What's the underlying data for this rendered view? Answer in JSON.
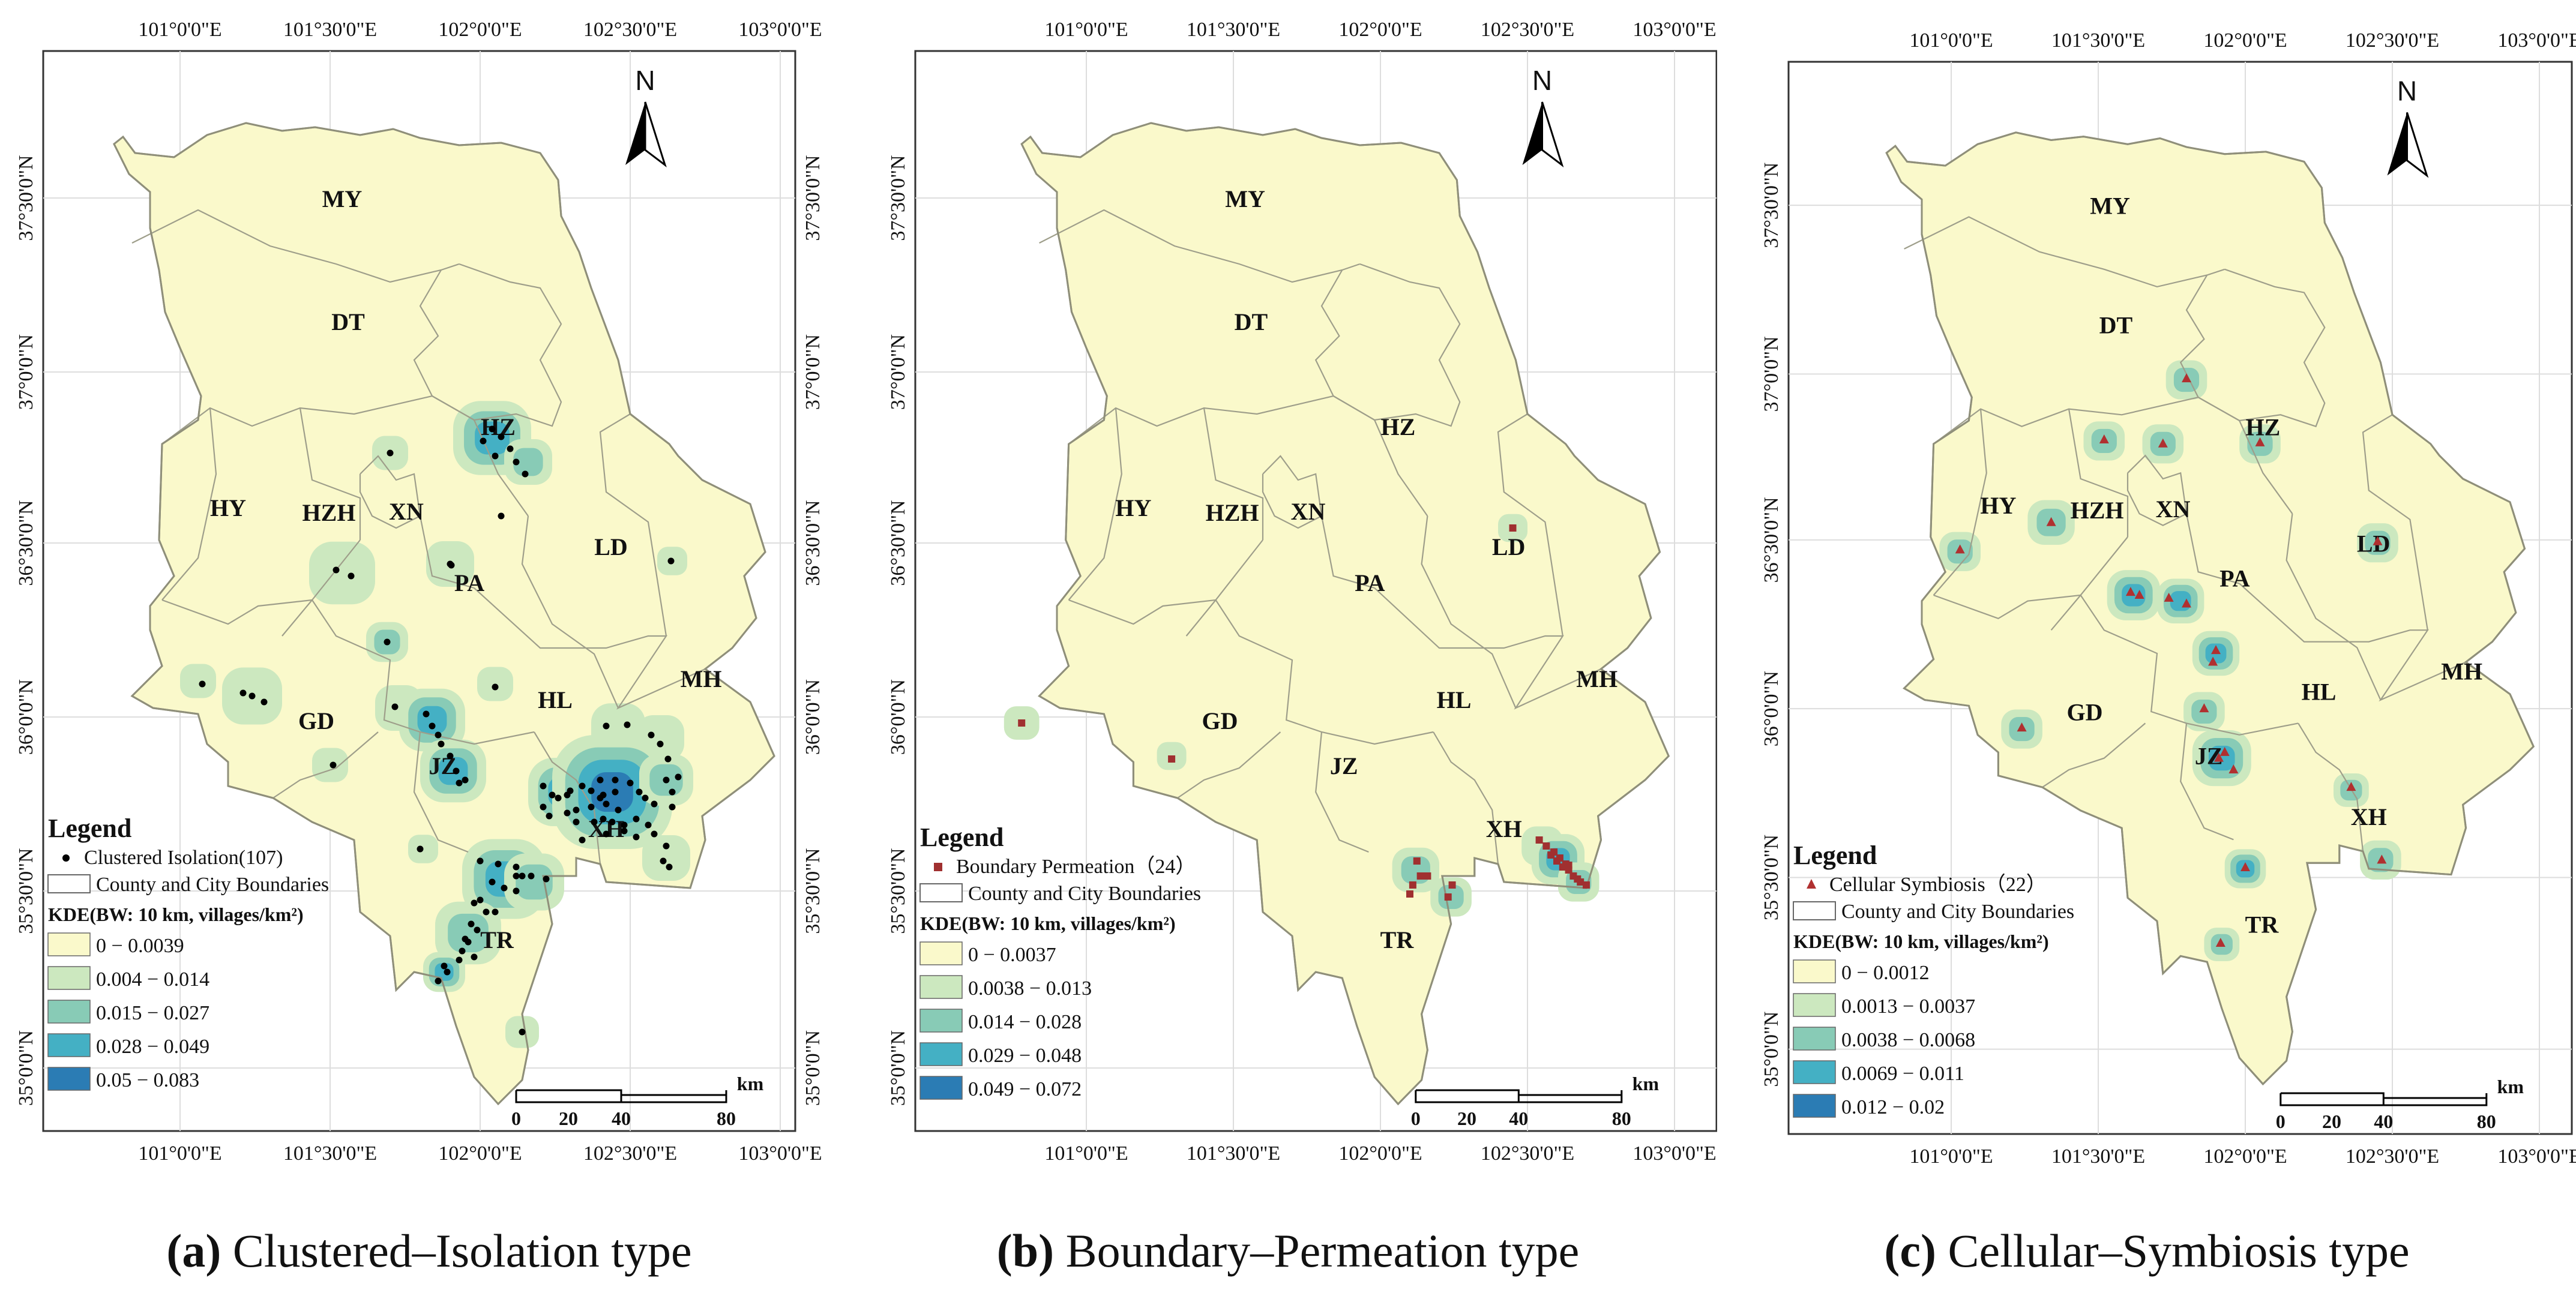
{
  "colors": {
    "c1": "#FAF9CB",
    "c2": "#CCE8BF",
    "c3": "#88CBB6",
    "c4": "#44B0C4",
    "c5": "#2B7CB4",
    "boundary": "#9E9E8A",
    "clustered_marker": "#000000",
    "boundary_marker": "#A03030",
    "cellular_marker": "#B03030",
    "frame": "#333333",
    "grid": "#DDDDDD"
  },
  "axes": {
    "lon_labels": [
      "101°0'0\"E",
      "101°30'0\"E",
      "102°0'0\"E",
      "102°30'0\"E",
      "103°0'0\"E"
    ],
    "lat_labels": [
      "37°30'0\"N",
      "37°0'0\"N",
      "36°30'0\"N",
      "36°0'0\"N",
      "35°30'0\"N",
      "35°0'0\"N"
    ]
  },
  "north_label": "N",
  "regions": [
    "MY",
    "DT",
    "HZ",
    "HY",
    "HZH",
    "XN",
    "PA",
    "LD",
    "GD",
    "HL",
    "MH",
    "JZ",
    "XH",
    "TR"
  ],
  "scale": {
    "ticks": [
      "0",
      "20",
      "40",
      "80"
    ],
    "unit": "km"
  },
  "legend_title": "Legend",
  "boundaries_label": "County and City Boundaries",
  "kde_title": "KDE(BW: 10 km, villages/km²)",
  "panels": [
    {
      "caption_letter": "(a)",
      "caption_text": " Clustered–Isolation type",
      "type_label": "Clustered Isolation(107)",
      "kde_classes": [
        "0 − 0.0039",
        "0.004 − 0.014",
        "0.015 − 0.027",
        "0.028 − 0.049",
        "0.05 − 0.083"
      ]
    },
    {
      "caption_letter": "(b)",
      "caption_text": " Boundary–Permeation type",
      "type_label": "Boundary Permeation（24）",
      "kde_classes": [
        "0 − 0.0037",
        "0.0038 − 0.013",
        "0.014 − 0.028",
        "0.029 − 0.048",
        "0.049 − 0.072"
      ]
    },
    {
      "caption_letter": "(c)",
      "caption_text": " Cellular–Symbiosis type",
      "type_label": "Cellular Symbiosis（22）",
      "kde_classes": [
        "0 − 0.0012",
        "0.0013 − 0.0037",
        "0.0038 − 0.0068",
        "0.0069 − 0.011",
        "0.012 − 0.02"
      ]
    }
  ]
}
